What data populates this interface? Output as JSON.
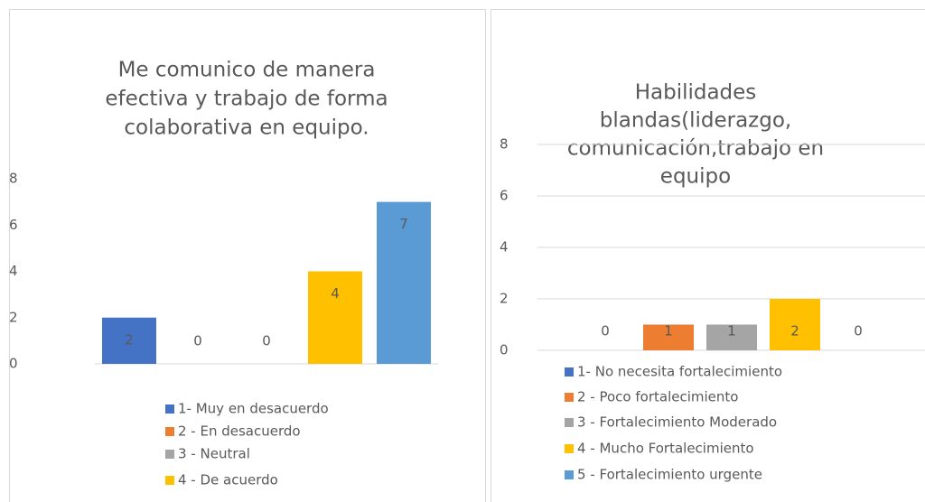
{
  "chart_data": [
    {
      "type": "bar",
      "title": [
        "Me comunico de manera",
        "efectiva y trabajo de forma",
        "colaborativa en equipo."
      ],
      "categories": [
        "1- Muy en desacuerdo",
        "2 - En desacuerdo",
        "3 - Neutral",
        "4 - De acuerdo",
        null
      ],
      "values": [
        2,
        0,
        0,
        4,
        7
      ],
      "colors": [
        "#4472c4",
        "#ed7d31",
        "#a5a5a5",
        "#ffc000",
        "#5b9bd5"
      ],
      "ylim": [
        0,
        8
      ],
      "yticks": [
        0,
        2,
        4,
        6,
        8
      ],
      "grid": false
    },
    {
      "type": "bar",
      "title": [
        "Habilidades",
        "blandas(liderazgo,",
        "comunicación,trabajo en",
        "equipo"
      ],
      "categories": [
        "1- No necesita fortalecimiento",
        "2 - Poco fortalecimiento",
        "3 - Fortalecimiento Moderado",
        "4 - Mucho Fortalecimiento",
        "5 - Fortalecimiento urgente"
      ],
      "values": [
        0,
        1,
        1,
        2,
        0
      ],
      "colors": [
        "#4472c4",
        "#ed7d31",
        "#a5a5a5",
        "#ffc000",
        "#5b9bd5"
      ],
      "ylim": [
        0,
        8
      ],
      "yticks": [
        0,
        2,
        4,
        6,
        8
      ],
      "grid": true
    }
  ]
}
